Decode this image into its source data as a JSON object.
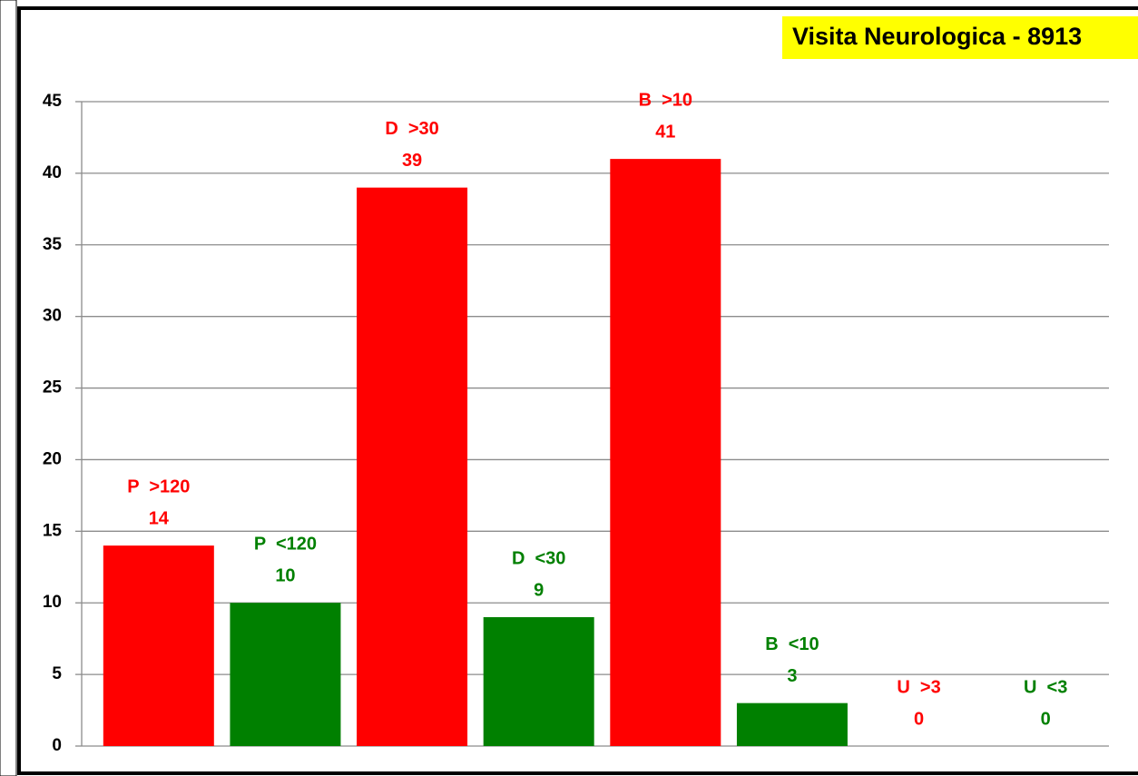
{
  "chart_data": {
    "type": "bar",
    "title": "Visita Neurologica - 8913",
    "categories": [
      "P  >120",
      "P  <120",
      "D  >30",
      "D  <30",
      "B  >10",
      "B  <10",
      "U  >3",
      "U  <3"
    ],
    "values": [
      14,
      10,
      39,
      9,
      41,
      3,
      0,
      0
    ],
    "colors": [
      "#ff0000",
      "#008000",
      "#ff0000",
      "#008000",
      "#ff0000",
      "#008000",
      "#ff0000",
      "#008000"
    ],
    "ylim": [
      0,
      45
    ],
    "yticks": [
      0,
      5,
      10,
      15,
      20,
      25,
      30,
      35,
      40,
      45
    ],
    "grid": true
  }
}
